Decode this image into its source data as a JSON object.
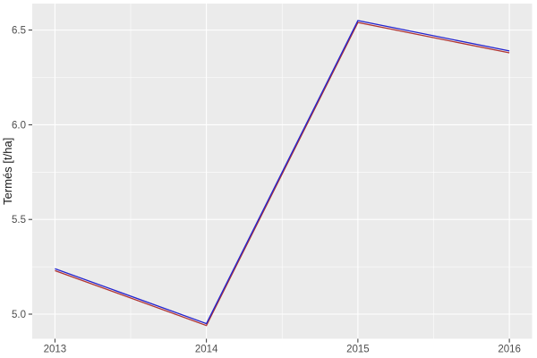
{
  "chart_data": {
    "type": "line",
    "title": "",
    "xlabel": "",
    "ylabel": "Termés [t/ha]",
    "x": [
      2013,
      2014,
      2015,
      2016
    ],
    "series": [
      {
        "name": "red-line",
        "color": "#B03432",
        "values": [
          5.23,
          4.94,
          6.54,
          6.38
        ]
      },
      {
        "name": "blue-line",
        "color": "#2424CE",
        "values": [
          5.24,
          4.95,
          6.55,
          6.39
        ]
      }
    ],
    "xlim": [
      2012.85,
      2016.15
    ],
    "ylim": [
      4.87,
      6.64
    ],
    "xticks": [
      2013,
      2014,
      2015,
      2016
    ],
    "xtick_labels": [
      "2013",
      "2014",
      "2015",
      "2016"
    ],
    "yticks": [
      5.0,
      5.5,
      6.0,
      6.5
    ],
    "ytick_labels": [
      "5.0",
      "5.5",
      "6.0",
      "6.5"
    ],
    "x_minor_breaks": [
      2013.5,
      2014.5,
      2015.5
    ],
    "y_minor_breaks": [
      5.25,
      5.75,
      6.25
    ],
    "grid": true,
    "legend_position": "none",
    "style": {
      "panel_background": "#EBEBEB",
      "outer_background": "#FFFFFF",
      "gridline_color": "#FFFFFF",
      "tick_mark_color": "#333333",
      "tick_label_color": "#4D4D4D",
      "axis_title_color": "#1A1A1A"
    }
  }
}
